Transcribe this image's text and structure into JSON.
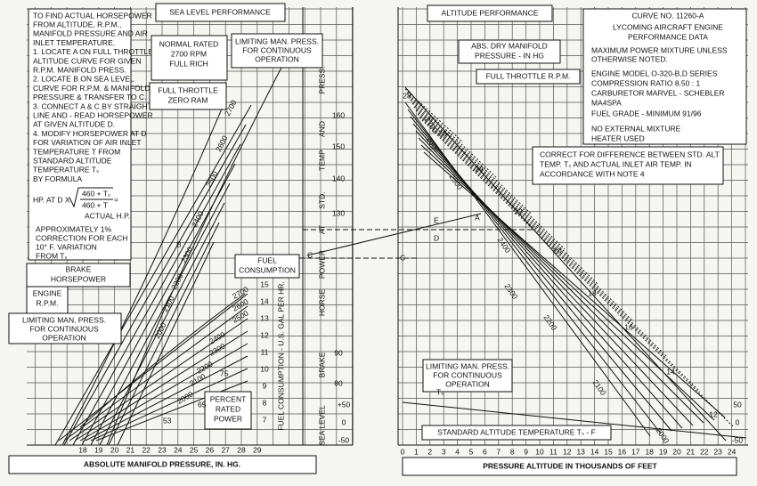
{
  "left": {
    "header": "SEA LEVEL    PERFORMANCE",
    "instructions": [
      "TO FIND ACTUAL HORSEPOWER",
      "FROM ALTITUDE, R.P.M.,",
      "MANIFOLD PRESSURE AND AIR",
      "INLET TEMPERATURE.",
      "1. LOCATE A ON FULL THROTTLE",
      "ALTITUDE CURVE FOR GIVEN",
      "R.P.M. MANIFOLD PRESS.",
      "2. LOCATE B ON SEA LEVEL",
      "CURVE FOR R.P.M. & MANIFOLD",
      "PRESSURE & TRANSFER TO C.",
      "3. CONNECT A & C BY STRAIGHT",
      "LINE AND - READ HORSEPOWER",
      "AT  GIVEN ALTITUDE D.",
      "4. MODIFY HORSEPOWER AT D",
      "FOR VARIATION OF AIR INLET",
      "TEMPERATURE  T  FROM",
      "STANDARD ALTITUDE",
      "TEMPERATURE  Tₛ",
      "BY FORMULA"
    ],
    "formula": {
      "lhs": "HP. AT D X",
      "num": "460 + Tₛ",
      "den": "460 + T",
      "eq": "=",
      "rhs": "ACTUAL H.P."
    },
    "approx": [
      "APPROXIMATELY 1%",
      "CORRECTION FOR  EACH",
      "10° F. VARIATION",
      "FROM  Tₛ"
    ],
    "normal_rated": [
      "NORMAL RATED",
      "2700 RPM",
      "FULL RICH"
    ],
    "limiting_top": [
      "LIMITING MAN. PRESS.",
      "FOR CONTINUOUS",
      "OPERATION"
    ],
    "full_throttle": [
      "FULL THROTTLE",
      "ZERO RAM"
    ],
    "brake_hp": [
      "BRAKE",
      "HORSEPOWER"
    ],
    "engine_rpm": [
      "ENGINE",
      "R.P.M."
    ],
    "limiting_bottom": [
      "LIMITING MAN. PRESS.",
      "FOR CONTINUOUS",
      "OPERATION"
    ],
    "fuel_consumption": [
      "FUEL",
      "CONSUMPTION"
    ],
    "percent_rated": [
      "PERCENT",
      "RATED",
      "POWER"
    ],
    "fuel_axis_title": "FUEL CONSUMPTION - U.S. GAL PER HR.",
    "fuel_ticks": [
      "15",
      "14",
      "13",
      "12",
      "11",
      "10",
      "9",
      "8",
      "7"
    ],
    "x_ticks": [
      "18",
      "19",
      "20",
      "21",
      "22",
      "23",
      "24",
      "25",
      "26",
      "27",
      "28",
      "29"
    ],
    "x_title": "ABSOLUTE MANIFOLD PRESSURE, IN. HG.",
    "rpm_labels": [
      "2700",
      "2600",
      "2500",
      "2400",
      "2300",
      "2200",
      "2100",
      "2000"
    ],
    "fuel_rpm_labels": [
      "2700",
      "2600",
      "2500",
      "2400",
      "2300",
      "2200",
      "2100",
      "2000"
    ],
    "percent_labels": [
      "53",
      "65",
      "75"
    ],
    "points": [
      "B",
      "C"
    ]
  },
  "center": {
    "title_words": [
      "PRESS.",
      "AND",
      "TEMP",
      "STD.",
      "AT",
      "POWER",
      "HORSE",
      "BRAKE"
    ],
    "hp_ticks": [
      "160",
      "150",
      "140",
      "130",
      "90",
      "80"
    ],
    "temp_ticks": [
      "+50",
      "0",
      "-50"
    ],
    "sea_level": "SEA  LEVEL"
  },
  "right": {
    "header": "ALTITUDE PERFORMANCE",
    "info": [
      "CURVE NO.  11260-A",
      "LYCOMING AIRCRAFT  ENGINE",
      "PERFORMANCE DATA",
      "MAXIMUM POWER MIXTURE UNLESS",
      "OTHERWISE  NOTED.",
      "ENGINE MODEL O-320-B,D SERIES",
      "COMPRESSION RATIO 8.50 : 1",
      "CARBURETOR  MARVEL - SCHEBLER",
      "MA4SPA",
      "FUEL GRADE - MINIMUM 91/96",
      "NO EXTERNAL MIXTURE",
      "HEATER USED"
    ],
    "abs_dry": [
      "ABS. DRY MANIFOLD",
      "PRESSURE - IN HG"
    ],
    "full_throttle_rpm": "FULL THROTTLE R.P.M.",
    "correct_note": [
      "CORRECT FOR DIFFERENCE BETWEEN STD. ALT",
      "TEMP. Tₛ  AND ACTUAL INLET AIR TEMP. IN",
      "ACCORDANCE WITH NOTE 4"
    ],
    "limiting": [
      "LIMITING MAN. PRESS.",
      "FOR CONTINUOUS",
      "OPERATION"
    ],
    "ts_label": "Tₛ",
    "std_alt_temp": "STANDARD ALTITUDE TEMPERATURE  Tₛ  - F",
    "x_ticks": [
      "0",
      "1",
      "2",
      "3",
      "4",
      "5",
      "6",
      "7",
      "8",
      "9",
      "10",
      "11",
      "12",
      "13",
      "14",
      "15",
      "16",
      "17",
      "18",
      "19",
      "20",
      "21",
      "22",
      "23",
      "24"
    ],
    "x_title": "PRESSURE ALTITUDE IN THOUSANDS OF FEET",
    "temp_ticks": [
      "50",
      "0",
      "-50"
    ],
    "mp_labels": [
      "28",
      "26",
      "24",
      "22",
      "20",
      "18",
      "16",
      "14",
      "12"
    ],
    "rpm_labels": [
      "2700",
      "2600",
      "2500",
      "2400",
      "2300",
      "2200",
      "2100",
      "2000"
    ],
    "points": [
      "E",
      "D",
      "A",
      "C"
    ]
  }
}
